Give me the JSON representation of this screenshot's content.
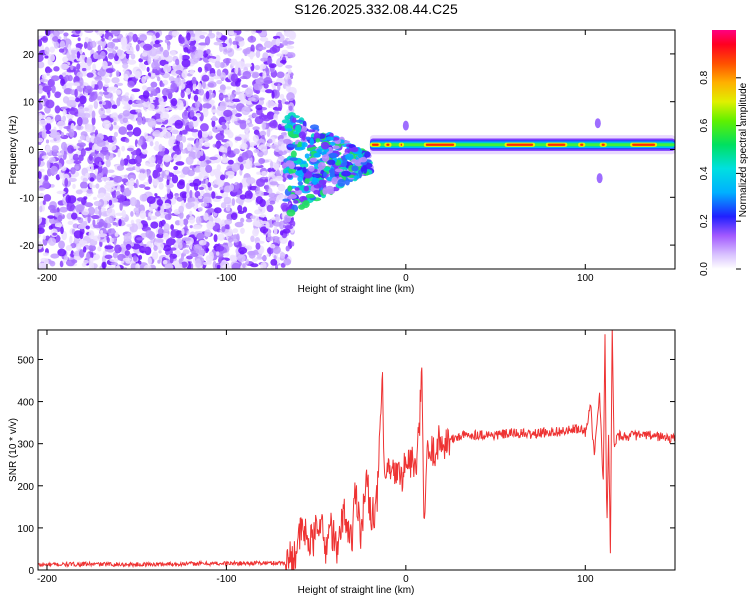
{
  "title": "S126.2025.332.08.44.C25",
  "chart_data": [
    {
      "type": "heatmap",
      "xlabel": "Height of straight line (km)",
      "ylabel": "Frequency (Hz)",
      "xlim": [
        -205,
        150
      ],
      "ylim": [
        -25,
        25
      ],
      "xticks": [
        -200,
        -100,
        0,
        100
      ],
      "yticks": [
        -20,
        -10,
        0,
        10,
        20
      ],
      "colorbar": {
        "label": "Normalized spectral amplitude",
        "range": [
          0,
          1
        ],
        "ticks": [
          "0.0",
          "0.2",
          "0.4",
          "0.6",
          "0.8"
        ]
      },
      "features": {
        "noise_band_x": [
          -205,
          -67
        ],
        "transition_x": [
          -67,
          -20
        ],
        "tone_x": [
          -20,
          150
        ],
        "tone_frequency": 1
      },
      "grid": false
    },
    {
      "type": "line",
      "xlabel": "Height of straight line (km)",
      "ylabel": "SNR (10 * v/v)",
      "xlim": [
        -205,
        150
      ],
      "ylim": [
        0,
        570
      ],
      "xticks": [
        -200,
        -100,
        0,
        100
      ],
      "yticks": [
        0,
        100,
        200,
        300,
        400,
        500
      ],
      "line_color": "#ee3333",
      "series": [
        {
          "x": [
            -205,
            -180,
            -150,
            -120,
            -90,
            -67,
            -62,
            -58,
            -52,
            -48,
            -45,
            -42,
            -38,
            -35,
            -30,
            -28,
            -25,
            -22,
            -19,
            -16,
            -13,
            -12,
            -10,
            -8,
            -6,
            -4,
            -2,
            0,
            3,
            6,
            9,
            10,
            12,
            15,
            18,
            22,
            26,
            30,
            40,
            50,
            60,
            70,
            80,
            90,
            95,
            100,
            103,
            105,
            108,
            110,
            111,
            112,
            113,
            114,
            115,
            116,
            118,
            122,
            130,
            140,
            150
          ],
          "y": [
            12,
            14,
            13,
            15,
            16,
            17,
            40,
            95,
            60,
            130,
            45,
            110,
            35,
            140,
            70,
            200,
            90,
            210,
            130,
            160,
            470,
            180,
            250,
            210,
            240,
            220,
            230,
            250,
            260,
            235,
            460,
            110,
            270,
            280,
            300,
            305,
            310,
            318,
            322,
            320,
            325,
            322,
            328,
            330,
            335,
            328,
            390,
            270,
            420,
            200,
            560,
            90,
            330,
            40,
            575,
            300,
            320,
            318,
            320,
            318,
            310
          ]
        }
      ],
      "grid": false
    }
  ]
}
